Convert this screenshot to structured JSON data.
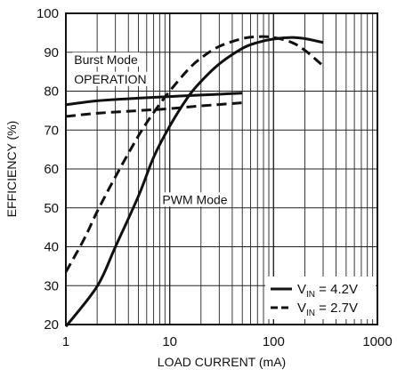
{
  "chart_data": {
    "type": "line",
    "xlabel": "LOAD CURRENT (mA)",
    "ylabel": "EFFICIENCY (%)",
    "x_scale": "log",
    "xlim": [
      1,
      1000
    ],
    "ylim": [
      20,
      100
    ],
    "x_ticks": [
      "1",
      "10",
      "100",
      "1000"
    ],
    "y_ticks": [
      "20",
      "30",
      "40",
      "50",
      "60",
      "70",
      "80",
      "90",
      "100"
    ],
    "grid": true,
    "legend_position": "bottom-right",
    "annotations": [
      {
        "text": "Burst Mode",
        "x": 1.2,
        "y": 87
      },
      {
        "text": "OPERATION",
        "x": 1.2,
        "y": 82
      },
      {
        "text": "PWM Mode",
        "x": 8.5,
        "y": 51
      }
    ],
    "series": [
      {
        "name": "VIN = 4.2V",
        "legend_main": "V",
        "legend_sub": "IN",
        "legend_tail": " = 4.2V",
        "style": "solid",
        "segments": [
          {
            "mode": "Burst Mode",
            "x": [
              1,
              2,
              5,
              10,
              20,
              50
            ],
            "y": [
              76.5,
              77.5,
              78.2,
              78.6,
              79.0,
              79.5
            ]
          },
          {
            "mode": "PWM Mode",
            "x": [
              1,
              2,
              3,
              5,
              7,
              10,
              15,
              20,
              30,
              50,
              70,
              100,
              150,
              200,
              300
            ],
            "y": [
              19.5,
              29.8,
              40.0,
              53.0,
              63.0,
              71.0,
              78.5,
              82.5,
              87.0,
              91.0,
              92.5,
              93.4,
              93.8,
              93.5,
              92.5
            ]
          }
        ]
      },
      {
        "name": "VIN = 2.7V",
        "legend_main": "V",
        "legend_sub": "IN",
        "legend_tail": " = 2.7V",
        "style": "dashed",
        "segments": [
          {
            "mode": "Burst Mode",
            "x": [
              1,
              2,
              5,
              10,
              20,
              50
            ],
            "y": [
              73.5,
              74.3,
              75.0,
              75.5,
              76.2,
              77.0
            ]
          },
          {
            "mode": "PWM Mode",
            "x": [
              1,
              1.5,
              2,
              3,
              5,
              7,
              10,
              15,
              20,
              30,
              50,
              70,
              100,
              150,
              200,
              300
            ],
            "y": [
              33.5,
              42.0,
              49.0,
              58.0,
              68.5,
              74.5,
              80.0,
              85.5,
              88.5,
              91.5,
              93.5,
              94.0,
              93.8,
              92.5,
              90.5,
              86.5
            ]
          }
        ]
      }
    ]
  }
}
